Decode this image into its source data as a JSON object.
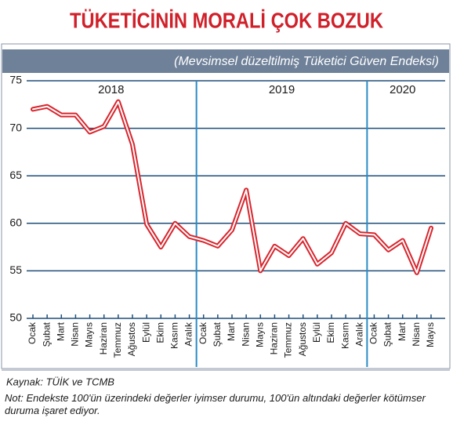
{
  "chart_data": {
    "type": "line",
    "title": "TÜKETİCİNİN MORALİ ÇOK BOZUK",
    "subtitle": "(Mevsimsel düzeltilmiş Tüketici Güven Endeksi)",
    "categories": [
      "Ocak",
      "Şubat",
      "Mart",
      "Nisan",
      "Mayıs",
      "Haziran",
      "Temmuz",
      "Ağustos",
      "Eylül",
      "Ekim",
      "Kasım",
      "Aralık",
      "Ocak",
      "Şubat",
      "Mart",
      "Nisan",
      "Mayıs",
      "Haziran",
      "Temmuz",
      "Ağustos",
      "Eylül",
      "Ekim",
      "Kasım",
      "Aralık",
      "Ocak",
      "Şubat",
      "Mart",
      "Nisan",
      "Mayıs"
    ],
    "years": [
      "2018",
      "2019",
      "2020"
    ],
    "series": [
      {
        "name": "Tüketici Güven Endeksi",
        "color": "#d8262e",
        "values": [
          72.0,
          72.3,
          71.4,
          71.4,
          69.6,
          70.2,
          72.8,
          68.3,
          59.9,
          57.5,
          60.0,
          58.6,
          58.2,
          57.6,
          59.3,
          63.5,
          55.0,
          57.6,
          56.6,
          58.4,
          55.7,
          56.9,
          60.0,
          58.9,
          58.8,
          57.2,
          58.2,
          54.8,
          59.5
        ]
      }
    ],
    "ylim": [
      50,
      75
    ],
    "yticks": [
      50,
      55,
      60,
      65,
      70,
      75
    ],
    "grid": true,
    "source": "Kaynak: TÜİK ve TCMB",
    "note": "Not: Endekste 100'ün üzerindeki değerler iyimser durumu, 100'ün altındaki değerler kötümser duruma işaret ediyor."
  }
}
